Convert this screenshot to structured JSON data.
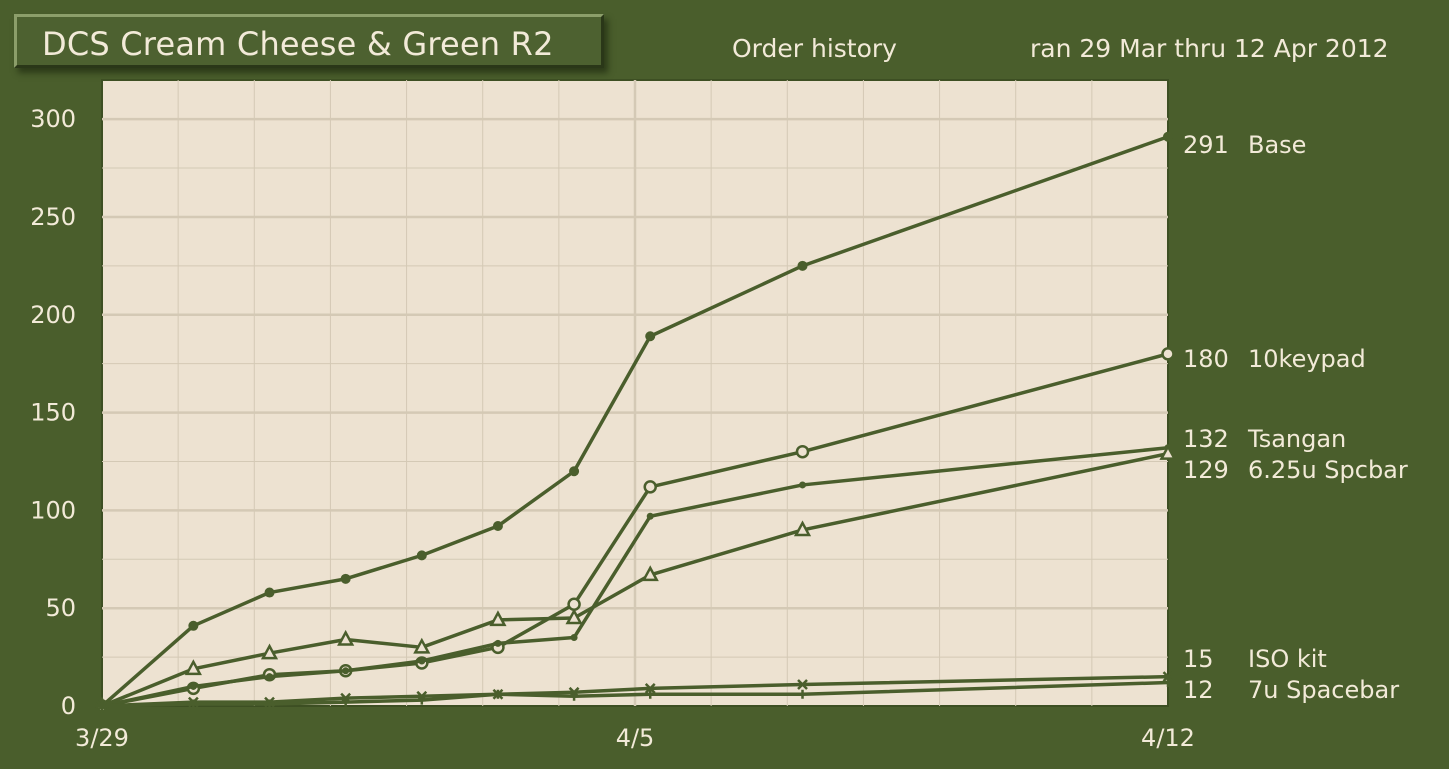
{
  "title": "DCS Cream Cheese & Green R2",
  "subtitle": "Order history",
  "date_range": "ran 29 Mar thru 12 Apr 2012",
  "colors": {
    "background": "#4a5e2c",
    "plot_background": "#ede2d1",
    "grid": "#d4c9b5",
    "line": "#4a5e2c",
    "text": "#f2ead8"
  },
  "chart_data": {
    "type": "line",
    "title": "Order history",
    "xlabel": "",
    "ylabel": "",
    "x_start": 0,
    "x_end": 14,
    "xlim": [
      0,
      14
    ],
    "ylim": [
      0,
      320
    ],
    "yticks": [
      0,
      50,
      100,
      150,
      200,
      250,
      300
    ],
    "xticks": [
      {
        "x": 0,
        "label": "3/29"
      },
      {
        "x": 7,
        "label": "4/5"
      },
      {
        "x": 14,
        "label": "4/12"
      }
    ],
    "grid": true,
    "series": [
      {
        "name": "Base",
        "final_value": 291,
        "marker": "filled-circle",
        "points": [
          [
            0,
            0
          ],
          [
            1.2,
            41
          ],
          [
            2.2,
            58
          ],
          [
            3.2,
            65
          ],
          [
            4.2,
            77
          ],
          [
            5.2,
            92
          ],
          [
            6.2,
            120
          ],
          [
            7.2,
            189
          ],
          [
            9.2,
            225
          ],
          [
            14,
            291
          ]
        ]
      },
      {
        "name": "10keypad",
        "final_value": 180,
        "marker": "open-circle",
        "points": [
          [
            0,
            0
          ],
          [
            1.2,
            9
          ],
          [
            2.2,
            16
          ],
          [
            3.2,
            18
          ],
          [
            4.2,
            22
          ],
          [
            5.2,
            30
          ],
          [
            6.2,
            52
          ],
          [
            7.2,
            112
          ],
          [
            9.2,
            130
          ],
          [
            14,
            180
          ]
        ]
      },
      {
        "name": "Tsangan",
        "final_value": 132,
        "marker": "small-dot",
        "points": [
          [
            0,
            0
          ],
          [
            1.2,
            10
          ],
          [
            2.2,
            15
          ],
          [
            3.2,
            18
          ],
          [
            4.2,
            23
          ],
          [
            5.2,
            32
          ],
          [
            6.2,
            35
          ],
          [
            7.2,
            97
          ],
          [
            9.2,
            113
          ],
          [
            14,
            132
          ]
        ]
      },
      {
        "name": "6.25u Spcbar",
        "final_value": 129,
        "marker": "open-triangle",
        "points": [
          [
            0,
            0
          ],
          [
            1.2,
            19
          ],
          [
            2.2,
            27
          ],
          [
            3.2,
            34
          ],
          [
            4.2,
            30
          ],
          [
            5.2,
            44
          ],
          [
            6.2,
            45
          ],
          [
            7.2,
            67
          ],
          [
            9.2,
            90
          ],
          [
            14,
            129
          ]
        ]
      },
      {
        "name": "ISO kit",
        "final_value": 15,
        "marker": "cross-x",
        "points": [
          [
            0,
            0
          ],
          [
            1.2,
            2
          ],
          [
            2.2,
            2
          ],
          [
            3.2,
            4
          ],
          [
            4.2,
            5
          ],
          [
            5.2,
            6
          ],
          [
            6.2,
            7
          ],
          [
            7.2,
            9
          ],
          [
            9.2,
            11
          ],
          [
            14,
            15
          ]
        ]
      },
      {
        "name": "7u Spacebar",
        "final_value": 12,
        "marker": "plus",
        "points": [
          [
            0,
            0
          ],
          [
            1.2,
            1
          ],
          [
            2.2,
            1
          ],
          [
            3.2,
            2
          ],
          [
            4.2,
            3
          ],
          [
            5.2,
            6
          ],
          [
            6.2,
            5
          ],
          [
            7.2,
            6
          ],
          [
            9.2,
            6
          ],
          [
            14,
            12
          ]
        ]
      }
    ],
    "end_labels": [
      {
        "value": "291",
        "name": "Base"
      },
      {
        "value": "180",
        "name": "10keypad"
      },
      {
        "value": "132",
        "name": "Tsangan"
      },
      {
        "value": "129",
        "name": "6.25u Spcbar"
      },
      {
        "value": "15",
        "name": "ISO kit"
      },
      {
        "value": "12",
        "name": "7u Spacebar"
      }
    ]
  }
}
